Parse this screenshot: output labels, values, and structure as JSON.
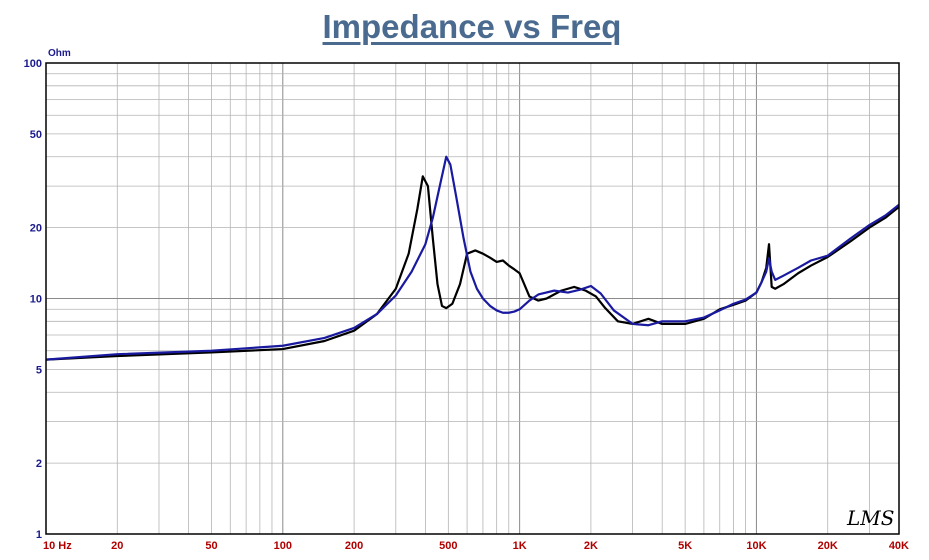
{
  "chart_data": {
    "type": "line",
    "title": "Impedance vs Freq",
    "ylabel": "Ohm",
    "xlabel": "",
    "xscale": "log",
    "yscale": "log",
    "xlim": [
      10,
      40000
    ],
    "ylim": [
      1,
      100
    ],
    "grid": true,
    "x_ticks": [
      {
        "value": 10,
        "label": "10 Hz"
      },
      {
        "value": 20,
        "label": "20"
      },
      {
        "value": 50,
        "label": "50"
      },
      {
        "value": 100,
        "label": "100"
      },
      {
        "value": 200,
        "label": "200"
      },
      {
        "value": 500,
        "label": "500"
      },
      {
        "value": 1000,
        "label": "1K"
      },
      {
        "value": 2000,
        "label": "2K"
      },
      {
        "value": 5000,
        "label": "5K"
      },
      {
        "value": 10000,
        "label": "10K"
      },
      {
        "value": 20000,
        "label": "20K"
      },
      {
        "value": 40000,
        "label": "40K"
      }
    ],
    "y_ticks": [
      {
        "value": 100,
        "label": "100"
      },
      {
        "value": 50,
        "label": "50"
      },
      {
        "value": 20,
        "label": "20"
      },
      {
        "value": 10,
        "label": "10"
      },
      {
        "value": 5,
        "label": "5"
      },
      {
        "value": 2,
        "label": "2"
      },
      {
        "value": 1,
        "label": "1"
      }
    ],
    "series": [
      {
        "color": "#000000",
        "x": [
          10,
          20,
          50,
          100,
          150,
          200,
          250,
          300,
          340,
          370,
          390,
          410,
          430,
          450,
          470,
          490,
          520,
          560,
          600,
          650,
          700,
          750,
          800,
          850,
          900,
          950,
          1000,
          1100,
          1200,
          1300,
          1500,
          1700,
          1900,
          2100,
          2300,
          2600,
          3000,
          3500,
          4000,
          5000,
          6000,
          7000,
          8000,
          9000,
          10000,
          10500,
          11000,
          11300,
          11600,
          12000,
          13000,
          15000,
          17000,
          20000,
          25000,
          30000,
          35000,
          40000
        ],
        "y": [
          5.5,
          5.7,
          5.9,
          6.1,
          6.6,
          7.3,
          8.6,
          11.0,
          15.5,
          24.0,
          33.0,
          30.0,
          18.0,
          11.5,
          9.3,
          9.1,
          9.5,
          11.5,
          15.5,
          16.0,
          15.5,
          14.9,
          14.3,
          14.5,
          13.8,
          13.3,
          12.8,
          10.2,
          9.8,
          10.0,
          10.8,
          11.2,
          10.8,
          10.2,
          9.1,
          8.0,
          7.8,
          8.2,
          7.8,
          7.8,
          8.2,
          9.0,
          9.4,
          9.8,
          10.6,
          11.7,
          13.5,
          17.0,
          11.2,
          11.0,
          11.5,
          12.8,
          13.8,
          15.0,
          17.5,
          20.0,
          22.0,
          24.5
        ]
      },
      {
        "color": "#1a1aa0",
        "x": [
          10,
          20,
          50,
          100,
          150,
          200,
          250,
          300,
          350,
          400,
          430,
          460,
          490,
          510,
          540,
          580,
          620,
          660,
          700,
          750,
          800,
          850,
          900,
          950,
          1000,
          1100,
          1200,
          1400,
          1600,
          1800,
          2000,
          2200,
          2500,
          3000,
          3500,
          4000,
          5000,
          6000,
          7000,
          8000,
          9000,
          10000,
          10500,
          11000,
          11300,
          11600,
          12000,
          13000,
          15000,
          17000,
          20000,
          25000,
          30000,
          35000,
          40000
        ],
        "y": [
          5.5,
          5.8,
          6.0,
          6.3,
          6.8,
          7.5,
          8.6,
          10.3,
          13.0,
          17.0,
          22.0,
          30.0,
          40.0,
          37.0,
          27.0,
          18.0,
          13.0,
          11.0,
          10.0,
          9.3,
          8.9,
          8.7,
          8.7,
          8.8,
          9.0,
          9.8,
          10.4,
          10.8,
          10.6,
          10.9,
          11.3,
          10.5,
          8.9,
          7.8,
          7.7,
          8.0,
          8.0,
          8.3,
          8.9,
          9.5,
          9.9,
          10.6,
          11.7,
          13.0,
          14.8,
          13.0,
          12.0,
          12.5,
          13.5,
          14.5,
          15.2,
          18.0,
          20.5,
          22.5,
          25.0
        ]
      }
    ]
  },
  "logo": {
    "text": "LMS"
  }
}
